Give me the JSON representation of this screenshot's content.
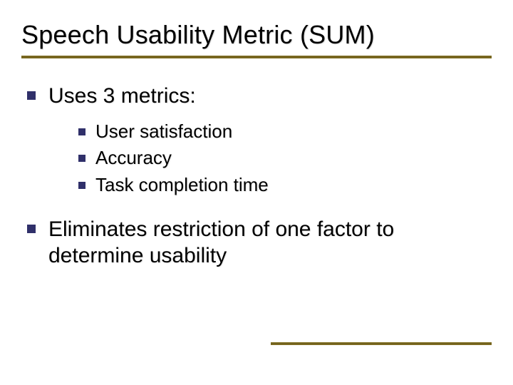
{
  "slide": {
    "title": "Speech Usability Metric (SUM)",
    "bullets": [
      {
        "text": "Uses 3 metrics:",
        "sub": [
          {
            "text": "User satisfaction"
          },
          {
            "text": "Accuracy"
          },
          {
            "text": "Task completion time"
          }
        ]
      },
      {
        "text": "Eliminates restriction of one factor to determine usability",
        "sub": []
      }
    ]
  },
  "style": {
    "background_color": "#ffffff",
    "title_fontsize": 36,
    "title_color": "#000000",
    "underline_color": "#8b7a2a",
    "bullet_square_color": "#30306a",
    "l1_fontsize": 30,
    "l2_fontsize": 26,
    "text_color": "#000000",
    "footer_line_width": 310
  }
}
